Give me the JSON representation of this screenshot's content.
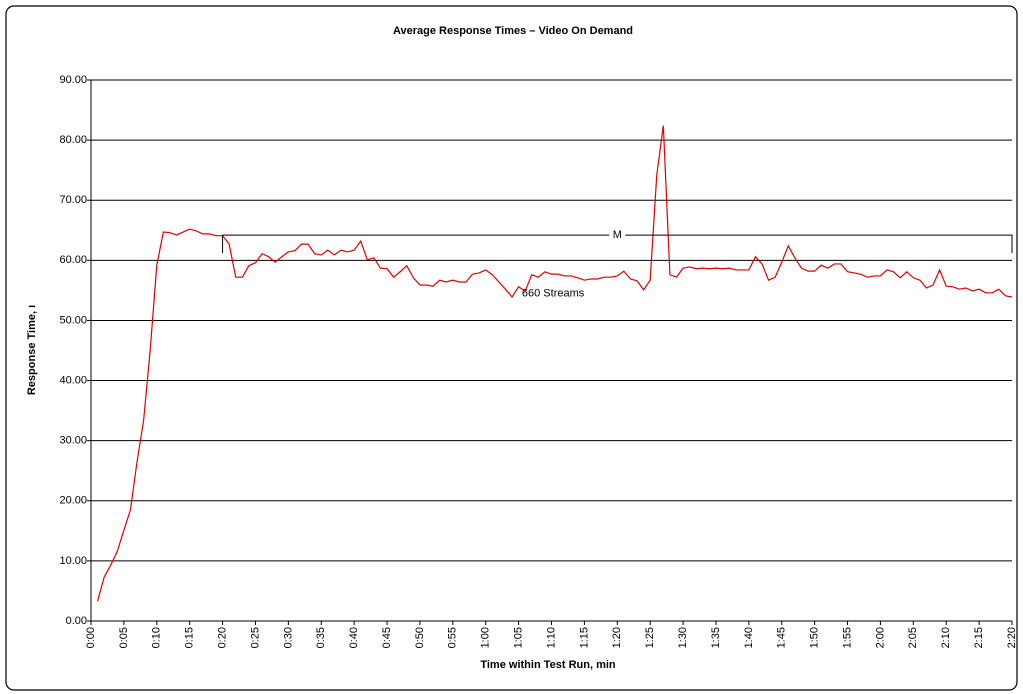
{
  "chart_data": {
    "type": "line",
    "title": "Average Response Times – Video On Demand",
    "x_label": "Time within Test Run, min",
    "y_label": "Response Time, ı",
    "xlim": [
      0,
      140
    ],
    "ylim": [
      0,
      90
    ],
    "xticks": [
      {
        "value": 0,
        "label": "0:00"
      },
      {
        "value": 5,
        "label": "0:05"
      },
      {
        "value": 10,
        "label": "0:10"
      },
      {
        "value": 15,
        "label": "0:15"
      },
      {
        "value": 20,
        "label": "0:20"
      },
      {
        "value": 25,
        "label": "0:25"
      },
      {
        "value": 30,
        "label": "0:30"
      },
      {
        "value": 35,
        "label": "0:35"
      },
      {
        "value": 40,
        "label": "0:40"
      },
      {
        "value": 45,
        "label": "0:45"
      },
      {
        "value": 50,
        "label": "0:50"
      },
      {
        "value": 55,
        "label": "0:55"
      },
      {
        "value": 60,
        "label": "1:00"
      },
      {
        "value": 65,
        "label": "1:05"
      },
      {
        "value": 70,
        "label": "1:10"
      },
      {
        "value": 75,
        "label": "1:15"
      },
      {
        "value": 80,
        "label": "1:20"
      },
      {
        "value": 85,
        "label": "1:25"
      },
      {
        "value": 90,
        "label": "1:30"
      },
      {
        "value": 95,
        "label": "1:35"
      },
      {
        "value": 100,
        "label": "1:40"
      },
      {
        "value": 105,
        "label": "1:45"
      },
      {
        "value": 110,
        "label": "1:50"
      },
      {
        "value": 115,
        "label": "1:55"
      },
      {
        "value": 120,
        "label": "2:00"
      },
      {
        "value": 125,
        "label": "2:05"
      },
      {
        "value": 130,
        "label": "2:10"
      },
      {
        "value": 135,
        "label": "2:15"
      },
      {
        "value": 140,
        "label": "2:20"
      }
    ],
    "yticks": [
      {
        "value": 0,
        "label": "0.00"
      },
      {
        "value": 10,
        "label": "10.00"
      },
      {
        "value": 20,
        "label": "20.00"
      },
      {
        "value": 30,
        "label": "30.00"
      },
      {
        "value": 40,
        "label": "40.00"
      },
      {
        "value": 50,
        "label": "50.00"
      },
      {
        "value": 60,
        "label": "60.00"
      },
      {
        "value": 70,
        "label": "70.00"
      },
      {
        "value": 80,
        "label": "80.00"
      },
      {
        "value": 90,
        "label": "90.00"
      }
    ],
    "grid": true,
    "x": [
      1,
      2,
      3,
      4,
      5,
      6,
      7,
      8,
      9,
      10,
      11,
      12,
      13,
      14,
      15,
      16,
      17,
      18,
      19,
      20,
      21,
      22,
      23,
      24,
      25,
      26,
      27,
      28,
      29,
      30,
      31,
      32,
      33,
      34,
      35,
      36,
      37,
      38,
      39,
      40,
      41,
      42,
      43,
      44,
      45,
      46,
      47,
      48,
      49,
      50,
      51,
      52,
      53,
      54,
      55,
      56,
      57,
      58,
      59,
      60,
      61,
      62,
      63,
      64,
      65,
      66,
      67,
      68,
      69,
      70,
      71,
      72,
      73,
      74,
      75,
      76,
      77,
      78,
      79,
      80,
      81,
      82,
      83,
      84,
      85,
      86,
      87,
      88,
      89,
      90,
      91,
      92,
      93,
      94,
      95,
      96,
      97,
      98,
      99,
      100,
      101,
      102,
      103,
      104,
      105,
      106,
      107,
      108,
      109,
      110,
      111,
      112,
      113,
      114,
      115,
      116,
      117,
      118,
      119,
      120,
      121,
      122,
      123,
      124,
      125,
      126,
      127,
      128,
      129,
      130,
      131,
      132,
      133,
      134,
      135,
      136,
      137,
      138,
      139,
      140
    ],
    "series": [
      {
        "color": "#e00000",
        "values": [
          3.3,
          7.3,
          9.3,
          11.6,
          15.1,
          18.5,
          26.5,
          33.4,
          45.1,
          59.2,
          64.7,
          64.6,
          64.2,
          64.7,
          65.2,
          64.9,
          64.4,
          64.4,
          64.1,
          64.1,
          62.7,
          57.2,
          57.2,
          59.1,
          59.6,
          61.1,
          60.6,
          59.7,
          60.6,
          61.4,
          61.6,
          62.7,
          62.7,
          61.1,
          60.9,
          61.7,
          60.9,
          61.7,
          61.4,
          61.7,
          63.2,
          60.1,
          60.4,
          58.7,
          58.6,
          57.2,
          58.1,
          59.1,
          57.1,
          55.9,
          55.9,
          55.7,
          56.7,
          56.4,
          56.7,
          56.4,
          56.4,
          57.7,
          57.9,
          58.4,
          57.6,
          56.4,
          55.2,
          53.9,
          55.6,
          54.9,
          57.6,
          57.2,
          58.1,
          57.7,
          57.7,
          57.4,
          57.4,
          57.1,
          56.7,
          56.9,
          56.9,
          57.2,
          57.2,
          57.4,
          58.2,
          56.9,
          56.6,
          55.1,
          56.7,
          74.2,
          82.4,
          57.6,
          57.2,
          58.7,
          58.9,
          58.6,
          58.7,
          58.6,
          58.7,
          58.6,
          58.7,
          58.4,
          58.4,
          58.4,
          60.6,
          59.4,
          56.7,
          57.2,
          59.7,
          62.4,
          60.4,
          58.7,
          58.2,
          58.2,
          59.2,
          58.7,
          59.4,
          59.4,
          58.1,
          57.9,
          57.7,
          57.2,
          57.4,
          57.4,
          58.4,
          58.1,
          57.1,
          58.1,
          57.1,
          56.7,
          55.4,
          55.9,
          58.4,
          55.7,
          55.6,
          55.2,
          55.4,
          54.9,
          55.2,
          54.6,
          54.6,
          55.2,
          54.1,
          53.9
        ]
      }
    ],
    "annotations": [
      {
        "text": "M",
        "x": [
          20,
          140
        ],
        "y": 64.2
      },
      {
        "text": "660 Streams",
        "x": 65.5,
        "y": 54.5
      }
    ]
  }
}
